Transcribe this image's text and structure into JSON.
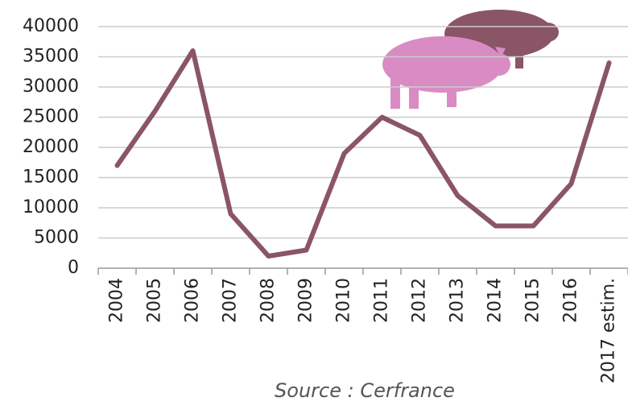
{
  "chart_data": {
    "type": "line",
    "categories": [
      "2004",
      "2005",
      "2006",
      "2007",
      "2008",
      "2009",
      "2010",
      "2011",
      "2012",
      "2013",
      "2014",
      "2015",
      "2016",
      "2017 estim."
    ],
    "values": [
      17000,
      26000,
      36000,
      9000,
      2000,
      3000,
      19000,
      25000,
      22000,
      12000,
      7000,
      7000,
      14000,
      34000
    ],
    "color": "#8a5566",
    "ylim": [
      0,
      40000
    ],
    "yticks": [
      0,
      5000,
      10000,
      15000,
      20000,
      25000,
      30000,
      35000,
      40000
    ],
    "grid": true,
    "source": "Source : Cerfrance"
  }
}
